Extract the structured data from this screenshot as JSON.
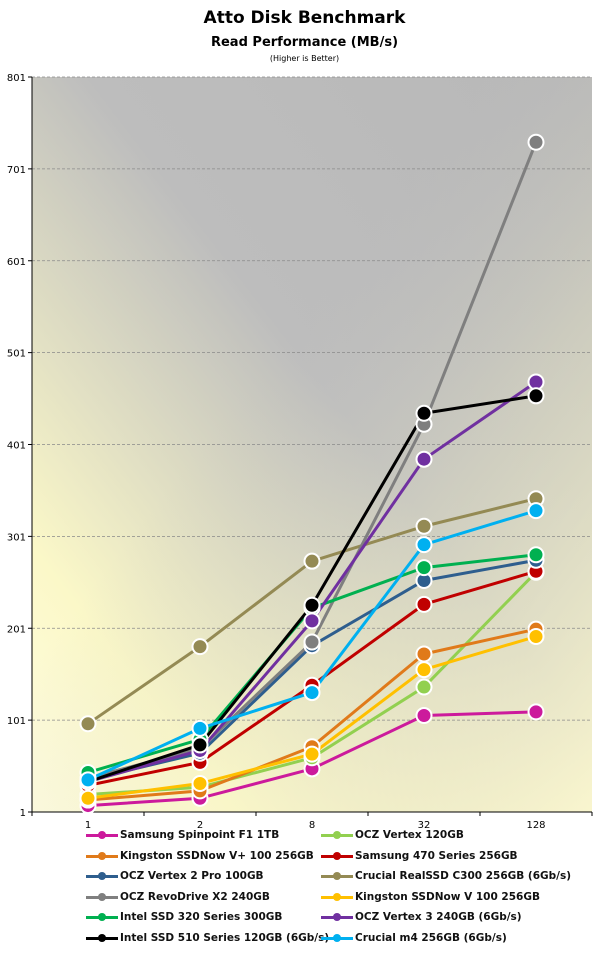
{
  "title": "Atto Disk Benchmark",
  "subtitle": "Read Performance (MB/s)",
  "note": "(Higher is Better)",
  "chart_data": {
    "type": "line",
    "title": "Atto Disk Benchmark",
    "subtitle": "Read Performance (MB/s)",
    "categories": [
      "1",
      "2",
      "8",
      "32",
      "128"
    ],
    "ylim": [
      1,
      801
    ],
    "yticks": [
      "1",
      "101",
      "201",
      "301",
      "401",
      "501",
      "601",
      "701",
      "801"
    ],
    "grid": true,
    "legend_position": "bottom",
    "series": [
      {
        "name": "Samsung Spinpoint F1 1TB",
        "color": "#cc1a9c",
        "values": [
          8,
          16,
          48,
          106,
          110
        ]
      },
      {
        "name": "OCZ Vertex 120GB",
        "color": "#92d050",
        "values": [
          20,
          28,
          60,
          137,
          262
        ]
      },
      {
        "name": "Kingston SSDNow V+ 100 256GB",
        "color": "#e07a1a",
        "values": [
          14,
          24,
          72,
          173,
          200
        ]
      },
      {
        "name": "Samsung 470 Series 256GB",
        "color": "#c00000",
        "values": [
          30,
          55,
          139,
          227,
          263
        ]
      },
      {
        "name": "OCZ Vertex 2 Pro 100GB",
        "color": "#2e5e8e",
        "values": [
          36,
          65,
          182,
          253,
          275
        ]
      },
      {
        "name": "Crucial RealSSD C300 256GB (6Gb/s)",
        "color": "#948a54",
        "values": [
          97,
          181,
          274,
          312,
          342
        ]
      },
      {
        "name": "OCZ RevoDrive X2 240GB",
        "color": "#7f7f7f",
        "values": [
          38,
          70,
          186,
          423,
          730
        ]
      },
      {
        "name": "Kingston SSDNow V 100 256GB",
        "color": "#ffc000",
        "values": [
          16,
          32,
          64,
          156,
          192
        ]
      },
      {
        "name": "Intel SSD 320 Series 300GB",
        "color": "#00b050",
        "values": [
          44,
          80,
          223,
          267,
          281
        ]
      },
      {
        "name": "OCZ Vertex 3 240GB (6Gb/s)",
        "color": "#7030a0",
        "values": [
          34,
          68,
          209,
          385,
          469
        ]
      },
      {
        "name": "Intel SSD 510 Series 120GB (6Gb/s)",
        "color": "#000000",
        "values": [
          34,
          74,
          226,
          435,
          454
        ]
      },
      {
        "name": "Crucial m4 256GB (6Gb/s)",
        "color": "#00b0f0",
        "values": [
          36,
          92,
          131,
          292,
          329
        ]
      }
    ]
  }
}
